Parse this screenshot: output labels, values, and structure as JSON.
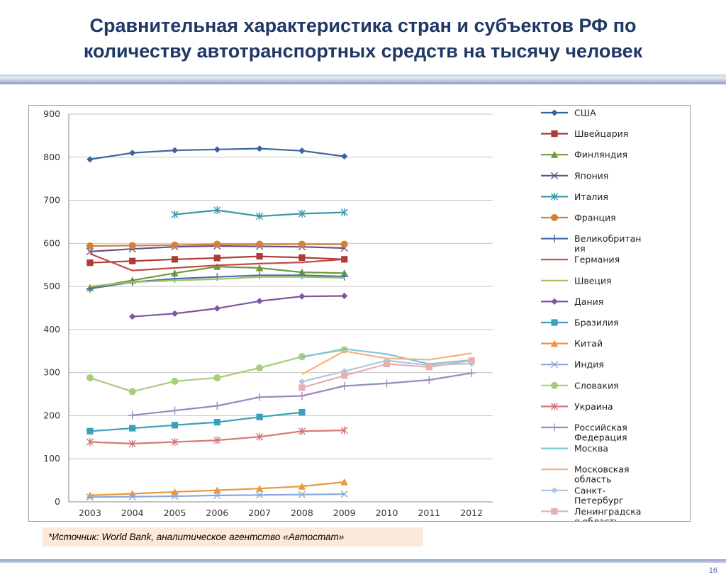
{
  "slide": {
    "title_line1": "Сравнительная характеристика стран и субъектов РФ по",
    "title_line2": "количеству автотранспортных средств на тысячу человек",
    "source": "*Источник: World Bank, аналитическое агентство «Автостат»",
    "page_number": "16"
  },
  "chart_data": {
    "type": "line",
    "title": "",
    "xlabel": "",
    "ylabel": "",
    "ylim": [
      0,
      900
    ],
    "yticks": [
      0,
      100,
      200,
      300,
      400,
      500,
      600,
      700,
      800,
      900
    ],
    "categories": [
      "2003",
      "2004",
      "2005",
      "2006",
      "2007",
      "2008",
      "2009",
      "2010",
      "2011",
      "2012"
    ],
    "grid": "horizontal",
    "legend_position": "right",
    "series": [
      {
        "name": "США",
        "color": "#3a64a0",
        "marker": "diamond",
        "values": [
          795,
          810,
          816,
          818,
          820,
          815,
          802,
          null,
          null,
          null
        ]
      },
      {
        "name": "Швейцария",
        "color": "#b03a36",
        "marker": "square",
        "values": [
          555,
          559,
          563,
          566,
          570,
          567,
          563,
          null,
          null,
          null
        ]
      },
      {
        "name": "Финляндия",
        "color": "#6f9a3a",
        "marker": "triangle",
        "values": [
          497,
          514,
          531,
          546,
          543,
          533,
          531,
          null,
          null,
          null
        ]
      },
      {
        "name": "Япония",
        "color": "#6a4d8c",
        "marker": "x",
        "values": [
          581,
          587,
          592,
          594,
          593,
          592,
          589,
          null,
          null,
          null
        ]
      },
      {
        "name": "Италия",
        "color": "#3a98aa",
        "marker": "star",
        "values": [
          null,
          null,
          667,
          677,
          663,
          669,
          672,
          null,
          null,
          null
        ]
      },
      {
        "name": "Франция",
        "color": "#d2803a",
        "marker": "circle",
        "values": [
          594,
          595,
          596,
          598,
          598,
          598,
          598,
          null,
          null,
          null
        ]
      },
      {
        "name": "Великобритания",
        "color": "#4a6ea8",
        "marker": "plus",
        "values": [
          495,
          510,
          518,
          522,
          526,
          526,
          523,
          null,
          null,
          null
        ]
      },
      {
        "name": "Германия",
        "color": "#c04a46",
        "marker": "none",
        "values": [
          576,
          537,
          543,
          549,
          553,
          556,
          563,
          null,
          null,
          null
        ]
      },
      {
        "name": "Швеция",
        "color": "#9ec35a",
        "marker": "none",
        "values": [
          500,
          510,
          514,
          517,
          522,
          522,
          520,
          null,
          null,
          null
        ]
      },
      {
        "name": "Дания",
        "color": "#7e55a0",
        "marker": "diamond",
        "values": [
          null,
          430,
          437,
          449,
          466,
          477,
          478,
          null,
          null,
          null
        ]
      },
      {
        "name": "Бразилия",
        "color": "#3aa0b8",
        "marker": "square",
        "values": [
          164,
          171,
          178,
          185,
          197,
          208,
          null,
          null,
          null,
          null
        ]
      },
      {
        "name": "Китай",
        "color": "#f0963a",
        "marker": "triangle",
        "values": [
          15,
          19,
          23,
          27,
          31,
          36,
          46,
          null,
          null,
          null
        ]
      },
      {
        "name": "Индия",
        "color": "#8aa8d8",
        "marker": "x",
        "values": [
          11,
          12,
          13,
          15,
          16,
          17,
          18,
          null,
          null,
          null
        ]
      },
      {
        "name": "Словакия",
        "color": "#a8ce78",
        "marker": "circle",
        "values": [
          288,
          256,
          280,
          288,
          311,
          337,
          353,
          null,
          null,
          null
        ]
      },
      {
        "name": "Украина",
        "color": "#d07a78",
        "marker": "star",
        "values": [
          139,
          135,
          139,
          143,
          151,
          164,
          166,
          null,
          null,
          null
        ]
      },
      {
        "name": "Российская Федерация",
        "color": "#9a88c0",
        "marker": "plus",
        "values": [
          null,
          201,
          212,
          223,
          243,
          246,
          269,
          275,
          283,
          299
        ]
      },
      {
        "name": "Москва",
        "color": "#7ac8d8",
        "marker": "none",
        "values": [
          null,
          null,
          null,
          null,
          null,
          336,
          355,
          343,
          320,
          329
        ]
      },
      {
        "name": "Московская область",
        "color": "#f8b07a",
        "marker": "none",
        "values": [
          null,
          null,
          null,
          null,
          null,
          296,
          350,
          333,
          330,
          345
        ]
      },
      {
        "name": "Санкт-Петербург",
        "color": "#b0c4e4",
        "marker": "diamond",
        "values": [
          null,
          null,
          null,
          null,
          null,
          279,
          303,
          328,
          317,
          321
        ]
      },
      {
        "name": "Ленинградская область",
        "color": "#e4b0b0",
        "marker": "square",
        "values": [
          null,
          null,
          null,
          null,
          null,
          265,
          293,
          320,
          313,
          328
        ]
      }
    ]
  },
  "legend_lines": [
    [
      "США"
    ],
    [
      "Швейцария"
    ],
    [
      "Финляндия"
    ],
    [
      "Япония"
    ],
    [
      "Италия"
    ],
    [
      "Франция"
    ],
    [
      "Великобритан",
      "ия"
    ],
    [
      "Германия"
    ],
    [
      "Швеция"
    ],
    [
      "Дания"
    ],
    [
      "Бразилия"
    ],
    [
      "Китай"
    ],
    [
      "Индия"
    ],
    [
      "Словакия"
    ],
    [
      "Украина"
    ],
    [
      "Российская",
      "Федерация"
    ],
    [
      "Москва"
    ],
    [
      "Московская",
      "область"
    ],
    [
      "Санкт-",
      "Петербург"
    ],
    [
      "Ленинградска",
      "я область"
    ]
  ]
}
